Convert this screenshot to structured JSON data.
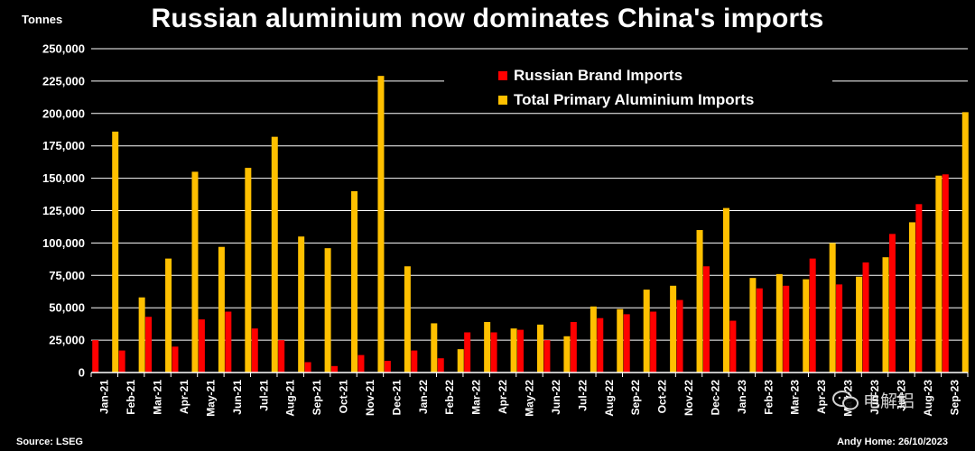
{
  "title": "Russian aluminium now dominates China's imports",
  "source": "Source: LSEG",
  "credit": "Andy Home: 26/10/2023",
  "watermark": "电解铝",
  "colors": {
    "background": "#000000",
    "russian": "#ff0000",
    "total": "#ffc000",
    "gridline": "#ffffff",
    "text": "#ffffff"
  },
  "chart_data": {
    "type": "bar",
    "ylabel": "Tonnes",
    "ylim": [
      0,
      250000
    ],
    "yticks": [
      0,
      25000,
      50000,
      75000,
      100000,
      125000,
      150000,
      175000,
      200000,
      225000,
      250000
    ],
    "ytick_labels": [
      "0",
      "25,000",
      "50,000",
      "75,000",
      "100,000",
      "125,000",
      "150,000",
      "175,000",
      "200,000",
      "225,000",
      "250,000"
    ],
    "grid": true,
    "legend_position": "top-right",
    "categories": [
      "Jan-21",
      "Feb-21",
      "Mar-21",
      "Apr-21",
      "May-21",
      "Jun-21",
      "Jul-21",
      "Aug-21",
      "Sep-21",
      "Oct-21",
      "Nov-21",
      "Dec-21",
      "Jan-22",
      "Feb-22",
      "Mar-22",
      "Apr-22",
      "May-22",
      "Jun-22",
      "Jul-22",
      "Aug-22",
      "Sep-22",
      "Oct-22",
      "Nov-22",
      "Dec-22",
      "Jan-23",
      "Feb-23",
      "Mar-23",
      "Apr-23",
      "May-23",
      "Jun-23",
      "Jul-23",
      "Aug-23",
      "Sep-23"
    ],
    "series": [
      {
        "name": "Russian Brand Imports",
        "color": "#ff0000",
        "values": [
          25000,
          17000,
          43000,
          20000,
          41000,
          47000,
          34000,
          25000,
          8000,
          5000,
          13500,
          9000,
          17000,
          11000,
          31000,
          31000,
          33000,
          25000,
          39000,
          42000,
          45000,
          47000,
          56000,
          82000,
          40000,
          65000,
          67000,
          88000,
          68000,
          85000,
          107000,
          130000,
          153000
        ]
      },
      {
        "name": "Total Primary Aluminium Imports",
        "color": "#ffc000",
        "values": [
          186000,
          58000,
          88000,
          155000,
          97000,
          158000,
          182000,
          105000,
          96000,
          140000,
          229000,
          82000,
          38000,
          18000,
          39000,
          34000,
          37000,
          28000,
          51000,
          49000,
          64000,
          67000,
          110000,
          127000,
          73000,
          76000,
          72000,
          100000,
          74000,
          89000,
          116000,
          152000,
          201000
        ]
      }
    ]
  }
}
